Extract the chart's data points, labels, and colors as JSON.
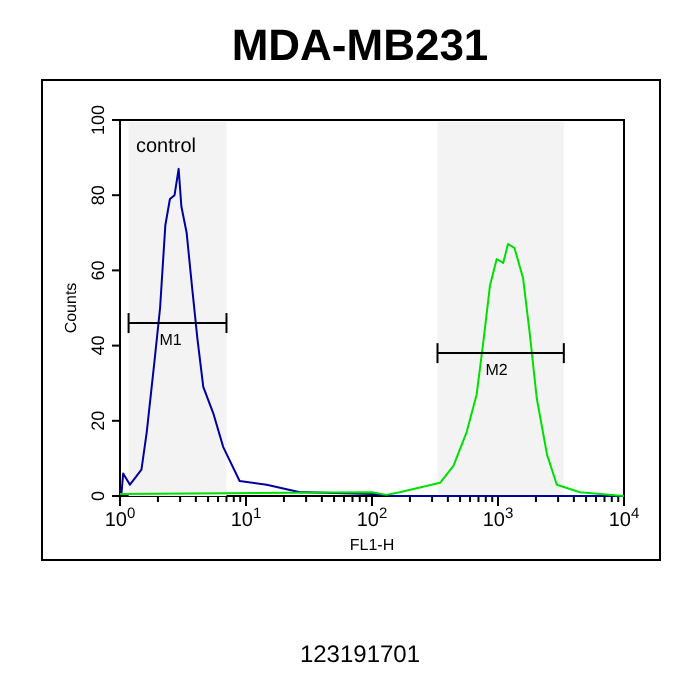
{
  "chart_data": {
    "type": "line",
    "title": "MDA-MB231",
    "xlabel": "FL1-H",
    "ylabel": "Counts",
    "log": "x",
    "xlim": [
      1,
      10000
    ],
    "ylim": [
      0,
      100
    ],
    "xticks": [
      {
        "value": 1,
        "label": "10$^{0}$"
      },
      {
        "value": 2,
        "label": null
      },
      {
        "value": 3,
        "label": null
      },
      {
        "value": 4,
        "label": null
      },
      {
        "value": 5,
        "label": null
      },
      {
        "value": 6,
        "label": null
      },
      {
        "value": 7,
        "label": null
      },
      {
        "value": 8,
        "label": null
      },
      {
        "value": 9,
        "label": null
      },
      {
        "value": 10,
        "label": "10$^{1}$"
      },
      {
        "value": 20,
        "label": null
      },
      {
        "value": 30,
        "label": null
      },
      {
        "value": 40,
        "label": null
      },
      {
        "value": 50,
        "label": null
      },
      {
        "value": 60,
        "label": null
      },
      {
        "value": 70,
        "label": null
      },
      {
        "value": 80,
        "label": null
      },
      {
        "value": 90,
        "label": null
      },
      {
        "value": 100,
        "label": "10$^{2}$"
      },
      {
        "value": 200,
        "label": null
      },
      {
        "value": 300,
        "label": null
      },
      {
        "value": 400,
        "label": null
      },
      {
        "value": 500,
        "label": null
      },
      {
        "value": 600,
        "label": null
      },
      {
        "value": 700,
        "label": null
      },
      {
        "value": 800,
        "label": null
      },
      {
        "value": 900,
        "label": null
      },
      {
        "value": 1000,
        "label": "10$^{3}$"
      },
      {
        "value": 2000,
        "label": null
      },
      {
        "value": 3000,
        "label": null
      },
      {
        "value": 4000,
        "label": null
      },
      {
        "value": 5000,
        "label": null
      },
      {
        "value": 6000,
        "label": null
      },
      {
        "value": 7000,
        "label": null
      },
      {
        "value": 8000,
        "label": null
      },
      {
        "value": 9000,
        "label": null
      },
      {
        "value": 10000,
        "label": "10$^{4}$"
      }
    ],
    "yticks": [
      0,
      20,
      40,
      60,
      80,
      100
    ],
    "grid": false,
    "series": [
      {
        "color": "#0000a0",
        "x": [
          1,
          1.03,
          1.06,
          1.2,
          1.48,
          1.63,
          1.88,
          2.08,
          2.29,
          2.49,
          2.71,
          2.92,
          3.07,
          3.38,
          3.72,
          4.11,
          4.58,
          5.5,
          6.6,
          8.9,
          14.6,
          26.8,
          30,
          100,
          150,
          10000
        ],
        "values": [
          2,
          1,
          6,
          3,
          7,
          17,
          36,
          50,
          72,
          79,
          80,
          87,
          77,
          70,
          56,
          42,
          29,
          22,
          13,
          4,
          3,
          1,
          1,
          0.5,
          0,
          0
        ]
      },
      {
        "color": "#00e000",
        "x": [
          1,
          100,
          130,
          166,
          347,
          443,
          564,
          677,
          765,
          864,
          977,
          1100,
          1200,
          1350,
          1580,
          1790,
          2030,
          2450,
          2930,
          4470,
          10000
        ],
        "values": [
          0.5,
          1,
          0.3,
          1,
          3.5,
          8,
          17,
          27,
          41,
          56,
          63,
          62,
          67,
          66,
          58,
          43,
          26,
          11,
          3,
          1,
          0
        ]
      }
    ],
    "bands": [
      {
        "axis": "x",
        "from": 1.17,
        "to": 7,
        "color": "#f3f3f3",
        "label": "M1"
      },
      {
        "axis": "x",
        "from": 331,
        "to": 3330,
        "color": "#f3f3f3",
        "label": "M2"
      }
    ],
    "annotations": [
      "control",
      "123191701"
    ]
  }
}
